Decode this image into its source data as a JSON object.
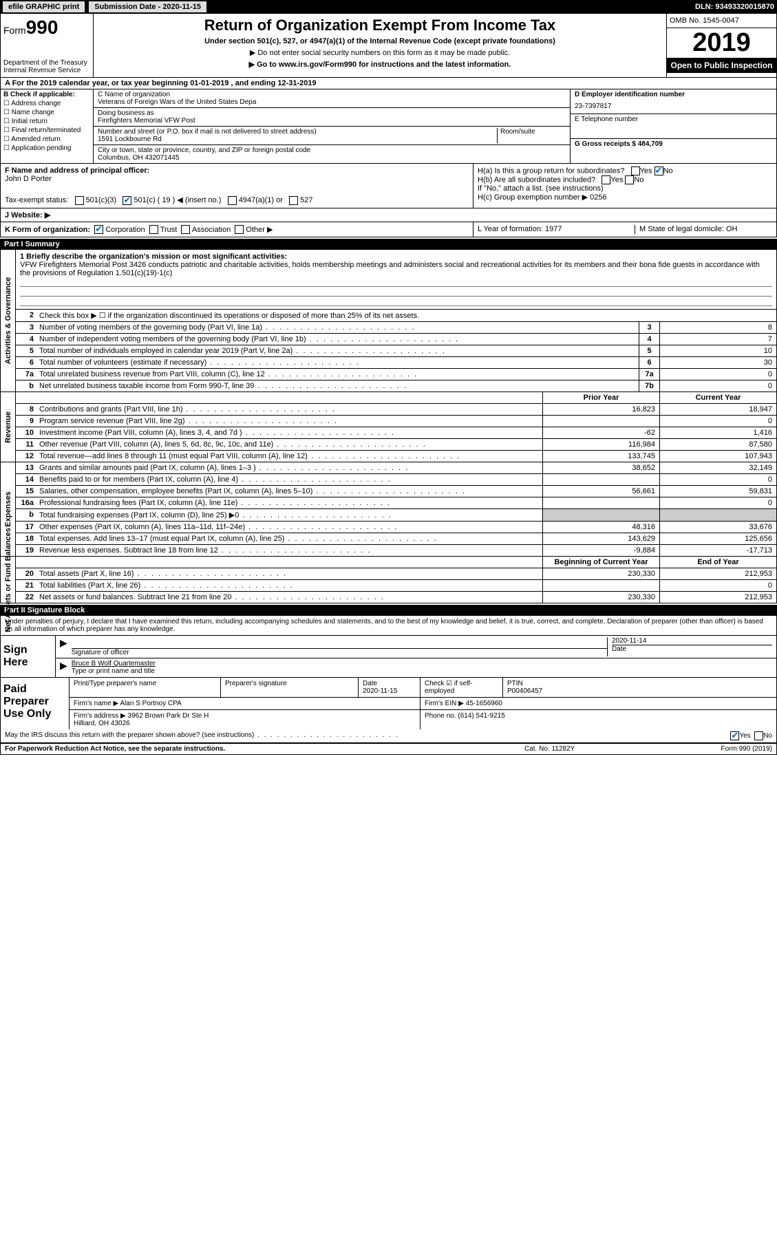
{
  "topbar": {
    "efile": "efile GRAPHIC print",
    "subdate_lbl": "Submission Date - 2020-11-15",
    "dln": "DLN: 93493320015870"
  },
  "header": {
    "form_label": "Form",
    "form_num": "990",
    "dept": "Department of the Treasury\nInternal Revenue Service",
    "title": "Return of Organization Exempt From Income Tax",
    "under": "Under section 501(c), 527, or 4947(a)(1) of the Internal Revenue Code (except private foundations)",
    "donot": "▶ Do not enter social security numbers on this form as it may be made public.",
    "goto": "▶ Go to www.irs.gov/Form990 for instructions and the latest information.",
    "omb": "OMB No. 1545-0047",
    "year": "2019",
    "open": "Open to Public Inspection"
  },
  "rowA": "A For the 2019 calendar year, or tax year beginning 01-01-2019   , and ending 12-31-2019",
  "B": {
    "lbl": "B Check if applicable:",
    "addr": "Address change",
    "name": "Name change",
    "init": "Initial return",
    "final": "Final return/terminated",
    "amend": "Amended return",
    "app": "Application pending"
  },
  "C": {
    "name_lbl": "C Name of organization",
    "name": "Veterans of Foreign Wars of the United States Depa",
    "dba_lbl": "Doing business as",
    "dba": "Firefighters Memorial VFW Post",
    "addr_lbl": "Number and street (or P.O. box if mail is not delivered to street address)",
    "room_lbl": "Room/suite",
    "addr": "1591 Lockbourne Rd",
    "city_lbl": "City or town, state or province, country, and ZIP or foreign postal code",
    "city": "Columbus, OH  432071445"
  },
  "D": {
    "lbl": "D Employer identification number",
    "val": "23-7397817"
  },
  "E": {
    "lbl": "E Telephone number",
    "val": ""
  },
  "G": {
    "lbl": "G Gross receipts $",
    "val": "484,709"
  },
  "F": {
    "lbl": "F  Name and address of principal officer:",
    "val": "John D Porter"
  },
  "H": {
    "a": "H(a)  Is this a group return for subordinates?",
    "a_no": "No",
    "b": "H(b)  Are all subordinates included?",
    "b_note": "If \"No,\" attach a list. (see instructions)",
    "c": "H(c)  Group exemption number ▶   0256"
  },
  "taxexempt": {
    "lbl": "Tax-exempt status:",
    "c3": "501(c)(3)",
    "cn": "501(c) ( 19 ) ◀ (insert no.)",
    "a1": "4947(a)(1) or",
    "s527": "527"
  },
  "J": "J   Website: ▶",
  "K": {
    "lbl": "K Form of organization:",
    "corp": "Corporation",
    "trust": "Trust",
    "assoc": "Association",
    "other": "Other ▶"
  },
  "L": "L Year of formation: 1977",
  "M": "M State of legal domicile: OH",
  "partI": {
    "title": "Part I      Summary",
    "q1_lbl": "1  Briefly describe the organization's mission or most significant activities:",
    "q1_txt": "VFW Firefighters Memorial Post 3426 conducts patriotic and charitable activities, holds membership meetings and administers social and recreational activities for its members and their bona fide guests in accordance with the provisions of Regulation 1.501(c)(19)-1(c)",
    "q2": "Check this box ▶ ☐  if the organization discontinued its operations or disposed of more than 25% of its net assets.",
    "rows_gov": [
      {
        "n": "3",
        "t": "Number of voting members of the governing body (Part VI, line 1a)",
        "b": "3",
        "v": "8"
      },
      {
        "n": "4",
        "t": "Number of independent voting members of the governing body (Part VI, line 1b)",
        "b": "4",
        "v": "7"
      },
      {
        "n": "5",
        "t": "Total number of individuals employed in calendar year 2019 (Part V, line 2a)",
        "b": "5",
        "v": "10"
      },
      {
        "n": "6",
        "t": "Total number of volunteers (estimate if necessary)",
        "b": "6",
        "v": "30"
      },
      {
        "n": "7a",
        "t": "Total unrelated business revenue from Part VIII, column (C), line 12",
        "b": "7a",
        "v": "0"
      },
      {
        "n": "b",
        "t": "Net unrelated business taxable income from Form 990-T, line 39",
        "b": "7b",
        "v": "0"
      }
    ],
    "col_hdr_py": "Prior Year",
    "col_hdr_cy": "Current Year",
    "rows_rev": [
      {
        "n": "8",
        "t": "Contributions and grants (Part VIII, line 1h)",
        "py": "16,823",
        "cy": "18,947"
      },
      {
        "n": "9",
        "t": "Program service revenue (Part VIII, line 2g)",
        "py": "",
        "cy": "0"
      },
      {
        "n": "10",
        "t": "Investment income (Part VIII, column (A), lines 3, 4, and 7d )",
        "py": "-62",
        "cy": "1,416"
      },
      {
        "n": "11",
        "t": "Other revenue (Part VIII, column (A), lines 5, 6d, 8c, 9c, 10c, and 11e)",
        "py": "116,984",
        "cy": "87,580"
      },
      {
        "n": "12",
        "t": "Total revenue—add lines 8 through 11 (must equal Part VIII, column (A), line 12)",
        "py": "133,745",
        "cy": "107,943"
      }
    ],
    "rows_exp": [
      {
        "n": "13",
        "t": "Grants and similar amounts paid (Part IX, column (A), lines 1–3 )",
        "py": "38,652",
        "cy": "32,149"
      },
      {
        "n": "14",
        "t": "Benefits paid to or for members (Part IX, column (A), line 4)",
        "py": "",
        "cy": "0"
      },
      {
        "n": "15",
        "t": "Salaries, other compensation, employee benefits (Part IX, column (A), lines 5–10)",
        "py": "56,661",
        "cy": "59,831"
      },
      {
        "n": "16a",
        "t": "Professional fundraising fees (Part IX, column (A), line 11e)",
        "py": "",
        "cy": "0"
      },
      {
        "n": "b",
        "t": "Total fundraising expenses (Part IX, column (D), line 25) ▶0",
        "py": "shade",
        "cy": "shade"
      },
      {
        "n": "17",
        "t": "Other expenses (Part IX, column (A), lines 11a–11d, 11f–24e)",
        "py": "48,316",
        "cy": "33,676"
      },
      {
        "n": "18",
        "t": "Total expenses. Add lines 13–17 (must equal Part IX, column (A), line 25)",
        "py": "143,629",
        "cy": "125,656"
      },
      {
        "n": "19",
        "t": "Revenue less expenses. Subtract line 18 from line 12",
        "py": "-9,884",
        "cy": "-17,713"
      }
    ],
    "col_hdr_boy": "Beginning of Current Year",
    "col_hdr_eoy": "End of Year",
    "rows_net": [
      {
        "n": "20",
        "t": "Total assets (Part X, line 16)",
        "py": "230,330",
        "cy": "212,953"
      },
      {
        "n": "21",
        "t": "Total liabilities (Part X, line 26)",
        "py": "",
        "cy": "0"
      },
      {
        "n": "22",
        "t": "Net assets or fund balances. Subtract line 21 from line 20",
        "py": "230,330",
        "cy": "212,953"
      }
    ],
    "sidelabels": {
      "gov": "Activities & Governance",
      "rev": "Revenue",
      "exp": "Expenses",
      "net": "Net Assets or Fund Balances"
    }
  },
  "partII": {
    "title": "Part II     Signature Block",
    "decl": "Under penalties of perjury, I declare that I have examined this return, including accompanying schedules and statements, and to the best of my knowledge and belief, it is true, correct, and complete. Declaration of preparer (other than officer) is based on all information of which preparer has any knowledge.",
    "sign_here": "Sign Here",
    "sig_officer": "Signature of officer",
    "sig_date": "Date",
    "sig_date_v": "2020-11-14",
    "name_title": "Bruce B Wolf Quartemaster",
    "type_name": "Type or print name and title",
    "paid": "Paid Preparer Use Only",
    "prep_name_lbl": "Print/Type preparer's name",
    "prep_sig_lbl": "Preparer's signature",
    "date_lbl": "Date",
    "date_v": "2020-11-15",
    "check_lbl": "Check ☑ if self-employed",
    "ptin_lbl": "PTIN",
    "ptin": "P00406457",
    "firm_name_lbl": "Firm's name    ▶",
    "firm_name": "Alan S Portnoy CPA",
    "firm_ein_lbl": "Firm's EIN ▶",
    "firm_ein": "45-1656960",
    "firm_addr_lbl": "Firm's address ▶",
    "firm_addr": "3962 Brown Park Dr Ste H\nHilliard, OH  43026",
    "phone_lbl": "Phone no.",
    "phone": "(614) 541-9215",
    "discuss": "May the IRS discuss this return with the preparer shown above? (see instructions)",
    "yes": "Yes",
    "no": "No"
  },
  "footer": {
    "left": "For Paperwork Reduction Act Notice, see the separate instructions.",
    "mid": "Cat. No. 11282Y",
    "right": "Form 990 (2019)"
  }
}
